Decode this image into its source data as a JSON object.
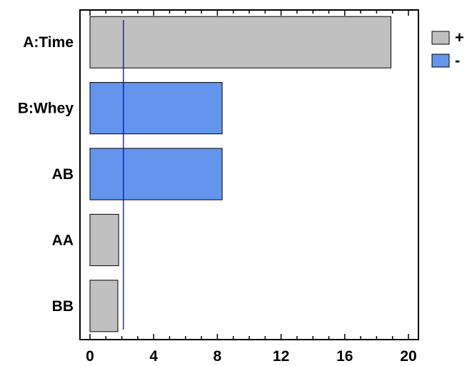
{
  "chart_data": {
    "type": "bar",
    "orientation": "horizontal",
    "categories": [
      "A:Time",
      "B:Whey",
      "AB",
      "AA",
      "BB"
    ],
    "values": [
      18.9,
      8.3,
      8.3,
      1.8,
      1.75
    ],
    "signs": [
      "+",
      "-",
      "-",
      "+",
      "+"
    ],
    "xlim": [
      0,
      20
    ],
    "xticks": [
      0,
      4,
      8,
      12,
      16,
      20
    ],
    "reference_line": 2.1,
    "legend": [
      {
        "label": "+",
        "color": "#c0c0c0"
      },
      {
        "label": "-",
        "color": "#6495ed"
      }
    ],
    "legend_position": "top-right",
    "colors": {
      "positive": "#c0c0c0",
      "negative": "#6495ed",
      "reference_line": "#0000ff",
      "bar_border": "#000000"
    },
    "title": "",
    "xlabel": "",
    "ylabel": "",
    "grid": false
  }
}
